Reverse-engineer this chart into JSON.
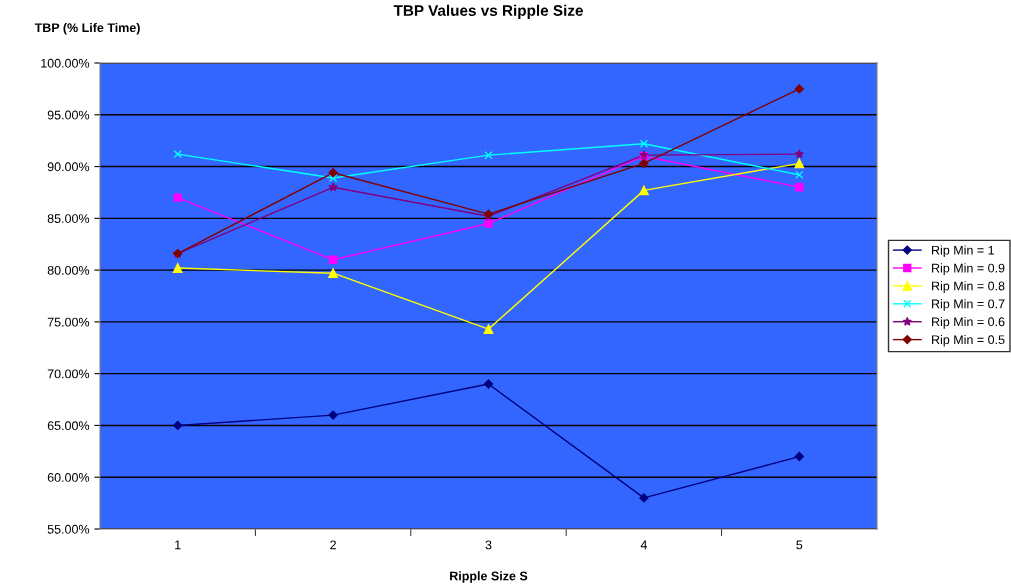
{
  "chart_data": {
    "type": "line",
    "title": "TBP Values vs Ripple Size",
    "xlabel": "Ripple Size S",
    "ylabel": "TBP (% Life Time)",
    "categories": [
      "1",
      "2",
      "3",
      "4",
      "5"
    ],
    "series": [
      {
        "name": "Rip Min = 1",
        "color": "#000080",
        "marker": "diamond",
        "values": [
          65.0,
          66.0,
          69.0,
          58.0,
          62.0
        ]
      },
      {
        "name": "Rip Min = 0.9",
        "color": "#ff00ff",
        "marker": "square",
        "values": [
          87.0,
          81.0,
          84.5,
          91.0,
          88.0
        ]
      },
      {
        "name": "Rip Min = 0.8",
        "color": "#ffff00",
        "marker": "triangle",
        "values": [
          80.2,
          79.7,
          74.3,
          87.7,
          90.3
        ]
      },
      {
        "name": "Rip Min = 0.7",
        "color": "#00ffff",
        "marker": "cross",
        "values": [
          91.2,
          88.9,
          91.1,
          92.2,
          89.2
        ]
      },
      {
        "name": "Rip Min = 0.6",
        "color": "#800080",
        "marker": "star",
        "values": [
          81.6,
          88.0,
          85.2,
          91.1,
          91.2
        ]
      },
      {
        "name": "Rip Min = 0.5",
        "color": "#800000",
        "marker": "diamond",
        "values": [
          81.6,
          89.4,
          85.4,
          90.3,
          97.5
        ]
      }
    ],
    "ylim": [
      55,
      100
    ],
    "yticks": [
      {
        "value": 55,
        "label": "55.00%"
      },
      {
        "value": 60,
        "label": "60.00%"
      },
      {
        "value": 65,
        "label": "65.00%"
      },
      {
        "value": 70,
        "label": "70.00%"
      },
      {
        "value": 75,
        "label": "75.00%"
      },
      {
        "value": 80,
        "label": "80.00%"
      },
      {
        "value": 85,
        "label": "85.00%"
      },
      {
        "value": 90,
        "label": "90.00%"
      },
      {
        "value": 95,
        "label": "95.00%"
      },
      {
        "value": 100,
        "label": "100.00%"
      }
    ],
    "grid": "y",
    "legend": "right",
    "line_style": "solid"
  }
}
